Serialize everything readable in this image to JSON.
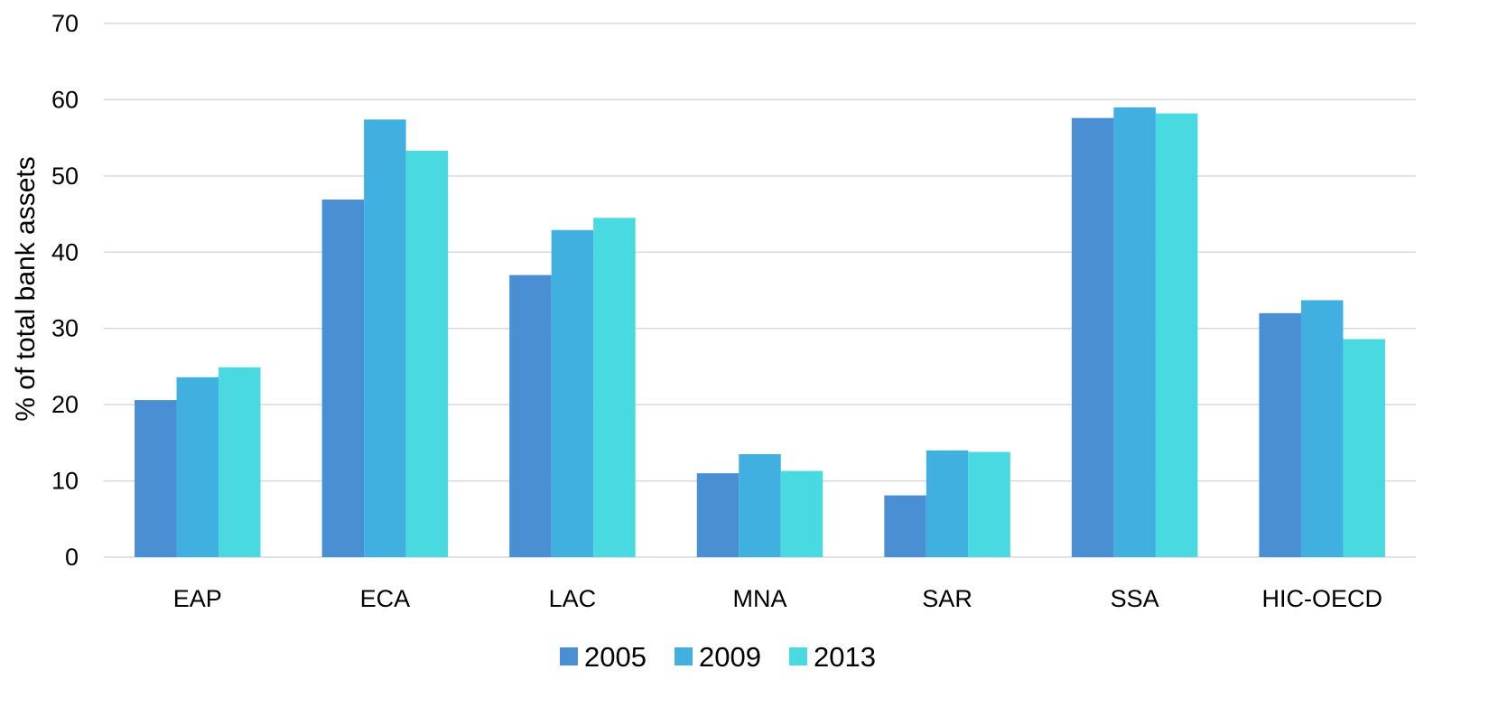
{
  "chart_data": {
    "type": "bar",
    "title": "",
    "xlabel": "",
    "ylabel": "% of total bank assets",
    "ylim": [
      0,
      70
    ],
    "yticks": [
      "0",
      "10",
      "20",
      "30",
      "40",
      "50",
      "60",
      "70"
    ],
    "grid": true,
    "legend_position": "bottom-center",
    "categories": [
      "EAP",
      "ECA",
      "LAC",
      "MNA",
      "SAR",
      "SSA",
      "HIC-OECD"
    ],
    "series": [
      {
        "name": "2005",
        "color": "#4a8fd4",
        "values": [
          20.6,
          46.9,
          37.0,
          11.0,
          8.1,
          57.6,
          32.0
        ]
      },
      {
        "name": "2009",
        "color": "#3fb0e0",
        "values": [
          23.6,
          57.4,
          42.9,
          13.5,
          14.0,
          59.0,
          33.7
        ]
      },
      {
        "name": "2013",
        "color": "#48dae0",
        "values": [
          24.9,
          53.3,
          44.5,
          11.3,
          13.8,
          58.2,
          28.6
        ]
      }
    ]
  }
}
